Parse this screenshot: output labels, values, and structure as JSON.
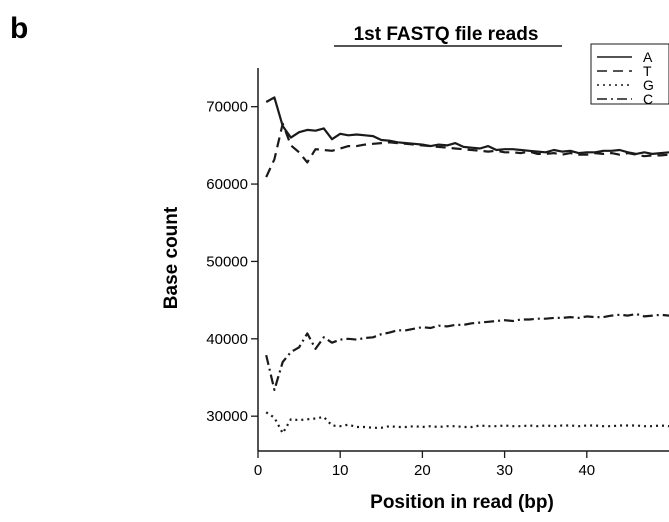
{
  "panel_label": "b",
  "chart_data": {
    "type": "line",
    "title": "1st FASTQ file reads",
    "xlabel": "Position in read (bp)",
    "ylabel": "Base count",
    "xlim": [
      0,
      50
    ],
    "ylim": [
      25500,
      75000
    ],
    "x_ticks": [
      0,
      10,
      20,
      30,
      40
    ],
    "y_ticks": [
      30000,
      40000,
      50000,
      60000,
      70000
    ],
    "grid": false,
    "legend_position": "top-right",
    "x": [
      1,
      2,
      3,
      4,
      5,
      6,
      7,
      8,
      9,
      10,
      11,
      12,
      13,
      14,
      15,
      16,
      17,
      18,
      19,
      20,
      21,
      22,
      23,
      24,
      25,
      26,
      27,
      28,
      29,
      30,
      31,
      32,
      33,
      34,
      35,
      36,
      37,
      38,
      39,
      40,
      41,
      42,
      43,
      44,
      45,
      46,
      47,
      48,
      49,
      50
    ],
    "series": [
      {
        "name": "A",
        "dash": "solid",
        "color": "#1a1a1a",
        "values": [
          70600,
          71200,
          67500,
          66000,
          66700,
          67000,
          66900,
          67200,
          65800,
          66500,
          66300,
          66400,
          66300,
          66200,
          65700,
          65600,
          65400,
          65300,
          65200,
          65100,
          64900,
          65100,
          65000,
          65300,
          64800,
          64700,
          64600,
          64900,
          64400,
          64500,
          64500,
          64400,
          64300,
          64200,
          64100,
          64400,
          64200,
          64300,
          64000,
          64100,
          64100,
          64300,
          64300,
          64400,
          64100,
          63900,
          64100,
          63900,
          64000,
          64100
        ]
      },
      {
        "name": "T",
        "dash": "dashed",
        "color": "#1a1a1a",
        "values": [
          60900,
          63200,
          67800,
          65000,
          64100,
          62800,
          64500,
          64400,
          64300,
          64600,
          64900,
          64900,
          65100,
          65200,
          65300,
          65400,
          65300,
          65200,
          65100,
          65000,
          64900,
          64800,
          64700,
          64600,
          64500,
          64400,
          64300,
          64200,
          64300,
          64100,
          64100,
          64000,
          64200,
          63900,
          63900,
          64000,
          63800,
          64000,
          63800,
          63800,
          64000,
          63900,
          64000,
          63800,
          64000,
          63800,
          63600,
          63700,
          63700,
          63800
        ]
      },
      {
        "name": "G",
        "dash": "dotted",
        "color": "#1a1a1a",
        "values": [
          30500,
          29800,
          27800,
          29600,
          29500,
          29600,
          29700,
          29900,
          28800,
          28700,
          28900,
          28600,
          28600,
          28500,
          28500,
          28700,
          28600,
          28600,
          28700,
          28600,
          28700,
          28600,
          28700,
          28700,
          28600,
          28600,
          28800,
          28700,
          28700,
          28800,
          28700,
          28700,
          28800,
          28700,
          28800,
          28700,
          28800,
          28800,
          28700,
          28800,
          28800,
          28700,
          28700,
          28800,
          28800,
          28800,
          28700,
          28700,
          28800,
          28700
        ]
      },
      {
        "name": "C",
        "dash": "dashdot",
        "color": "#1a1a1a",
        "values": [
          37900,
          33400,
          37000,
          38300,
          38900,
          40700,
          38700,
          40200,
          39500,
          39900,
          40000,
          39900,
          40100,
          40200,
          40600,
          40800,
          41100,
          41100,
          41300,
          41500,
          41400,
          41700,
          41600,
          41800,
          41800,
          42000,
          42100,
          42200,
          42300,
          42400,
          42300,
          42500,
          42500,
          42600,
          42600,
          42700,
          42700,
          42800,
          42700,
          42900,
          42800,
          42800,
          43000,
          43100,
          43000,
          43200,
          42900,
          43000,
          43100,
          43000
        ]
      }
    ]
  }
}
